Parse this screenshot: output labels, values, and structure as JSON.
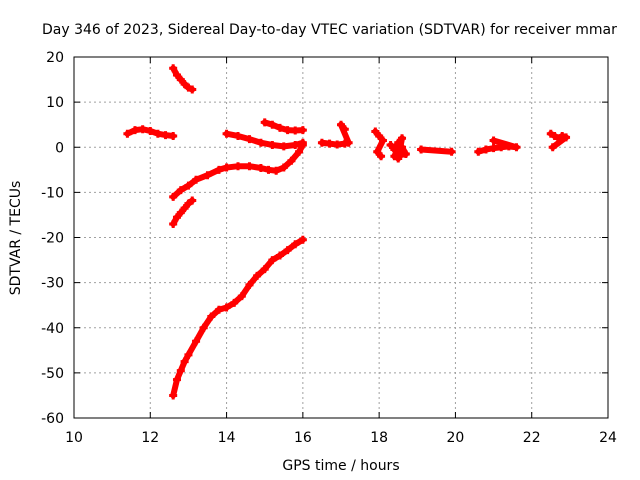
{
  "chart_data": {
    "type": "scatter",
    "title": "Day 346 of 2023, Sidereal Day-to-day VTEC variation (SDTVAR) for receiver mmar",
    "xlabel": "GPS time / hours",
    "ylabel": "SDTVAR / TECUs",
    "xlim": [
      10,
      24
    ],
    "ylim": [
      -60,
      20
    ],
    "xticks": [
      "10",
      "12",
      "14",
      "16",
      "18",
      "20",
      "22",
      "24"
    ],
    "yticks": [
      "20",
      "10",
      "0",
      "-10",
      "-20",
      "-30",
      "-40",
      "-50",
      "-60"
    ],
    "grid": true,
    "marker_color": "#ff0000",
    "series": [
      {
        "x": [
          11.4,
          11.6,
          11.8,
          12.0,
          12.2,
          12.4,
          12.6
        ],
        "y": [
          3.0,
          3.8,
          4.0,
          3.6,
          3.0,
          2.7,
          2.5
        ]
      },
      {
        "x": [
          12.6,
          12.7,
          12.8,
          12.9,
          13.0,
          13.1
        ],
        "y": [
          17.5,
          16.0,
          15.0,
          14.0,
          13.2,
          12.8
        ]
      },
      {
        "x": [
          12.6,
          12.8,
          13.0,
          13.2,
          13.5,
          13.8,
          14.0,
          14.3,
          14.6,
          14.9,
          15.1,
          15.3,
          15.5,
          15.7,
          15.9,
          16.0
        ],
        "y": [
          -11.0,
          -9.5,
          -8.5,
          -7.2,
          -6.2,
          -5.0,
          -4.5,
          -4.2,
          -4.2,
          -4.6,
          -5.0,
          -5.2,
          -4.5,
          -3.0,
          -1.0,
          0.5
        ]
      },
      {
        "x": [
          12.6,
          12.7,
          12.8,
          12.9,
          13.0,
          13.1
        ],
        "y": [
          -17.0,
          -15.5,
          -14.5,
          -13.5,
          -12.5,
          -11.8
        ]
      },
      {
        "x": [
          12.6,
          12.7,
          12.8,
          12.9,
          13.0,
          13.2,
          13.4,
          13.6,
          13.8,
          14.0,
          14.2,
          14.4,
          14.6,
          14.8,
          15.0,
          15.2,
          15.4,
          15.6,
          15.8,
          16.0
        ],
        "y": [
          -55.0,
          -51.5,
          -49.5,
          -47.5,
          -46.0,
          -43.0,
          -40.0,
          -37.5,
          -36.0,
          -35.5,
          -34.5,
          -33.0,
          -30.5,
          -28.5,
          -27.0,
          -25.0,
          -24.0,
          -22.8,
          -21.5,
          -20.5
        ]
      },
      {
        "x": [
          14.0,
          14.3,
          14.6,
          14.9,
          15.2,
          15.5,
          15.8,
          16.0
        ],
        "y": [
          3.0,
          2.5,
          1.8,
          1.0,
          0.5,
          0.2,
          0.5,
          1.0
        ]
      },
      {
        "x": [
          15.0,
          15.2,
          15.4,
          15.6,
          15.8,
          16.0
        ],
        "y": [
          5.5,
          5.0,
          4.3,
          3.8,
          3.7,
          3.8
        ]
      },
      {
        "x": [
          16.5,
          16.7,
          16.9,
          17.1,
          17.2,
          17.0,
          17.1
        ],
        "y": [
          1.0,
          0.8,
          0.6,
          0.8,
          1.0,
          5.0,
          4.0
        ]
      },
      {
        "x": [
          17.9,
          18.0,
          18.1,
          17.95,
          18.05
        ],
        "y": [
          3.5,
          2.5,
          1.5,
          -1.0,
          -2.0
        ]
      },
      {
        "x": [
          18.3,
          18.4,
          18.5,
          18.6,
          18.7,
          18.4,
          18.6,
          18.5
        ],
        "y": [
          0.5,
          -0.5,
          1.0,
          0.0,
          -1.5,
          -2.0,
          2.0,
          -2.5
        ]
      },
      {
        "x": [
          19.1,
          19.9
        ],
        "y": [
          -0.5,
          -1.0
        ]
      },
      {
        "x": [
          20.6,
          20.8,
          21.0,
          21.2,
          21.4,
          21.6,
          21.0
        ],
        "y": [
          -1.0,
          -0.5,
          -0.2,
          0.0,
          0.2,
          0.0,
          1.5
        ]
      },
      {
        "x": [
          22.5,
          22.6,
          22.7,
          22.8,
          22.9,
          22.55
        ],
        "y": [
          3.0,
          2.5,
          2.0,
          2.5,
          2.2,
          0.0
        ]
      }
    ]
  }
}
